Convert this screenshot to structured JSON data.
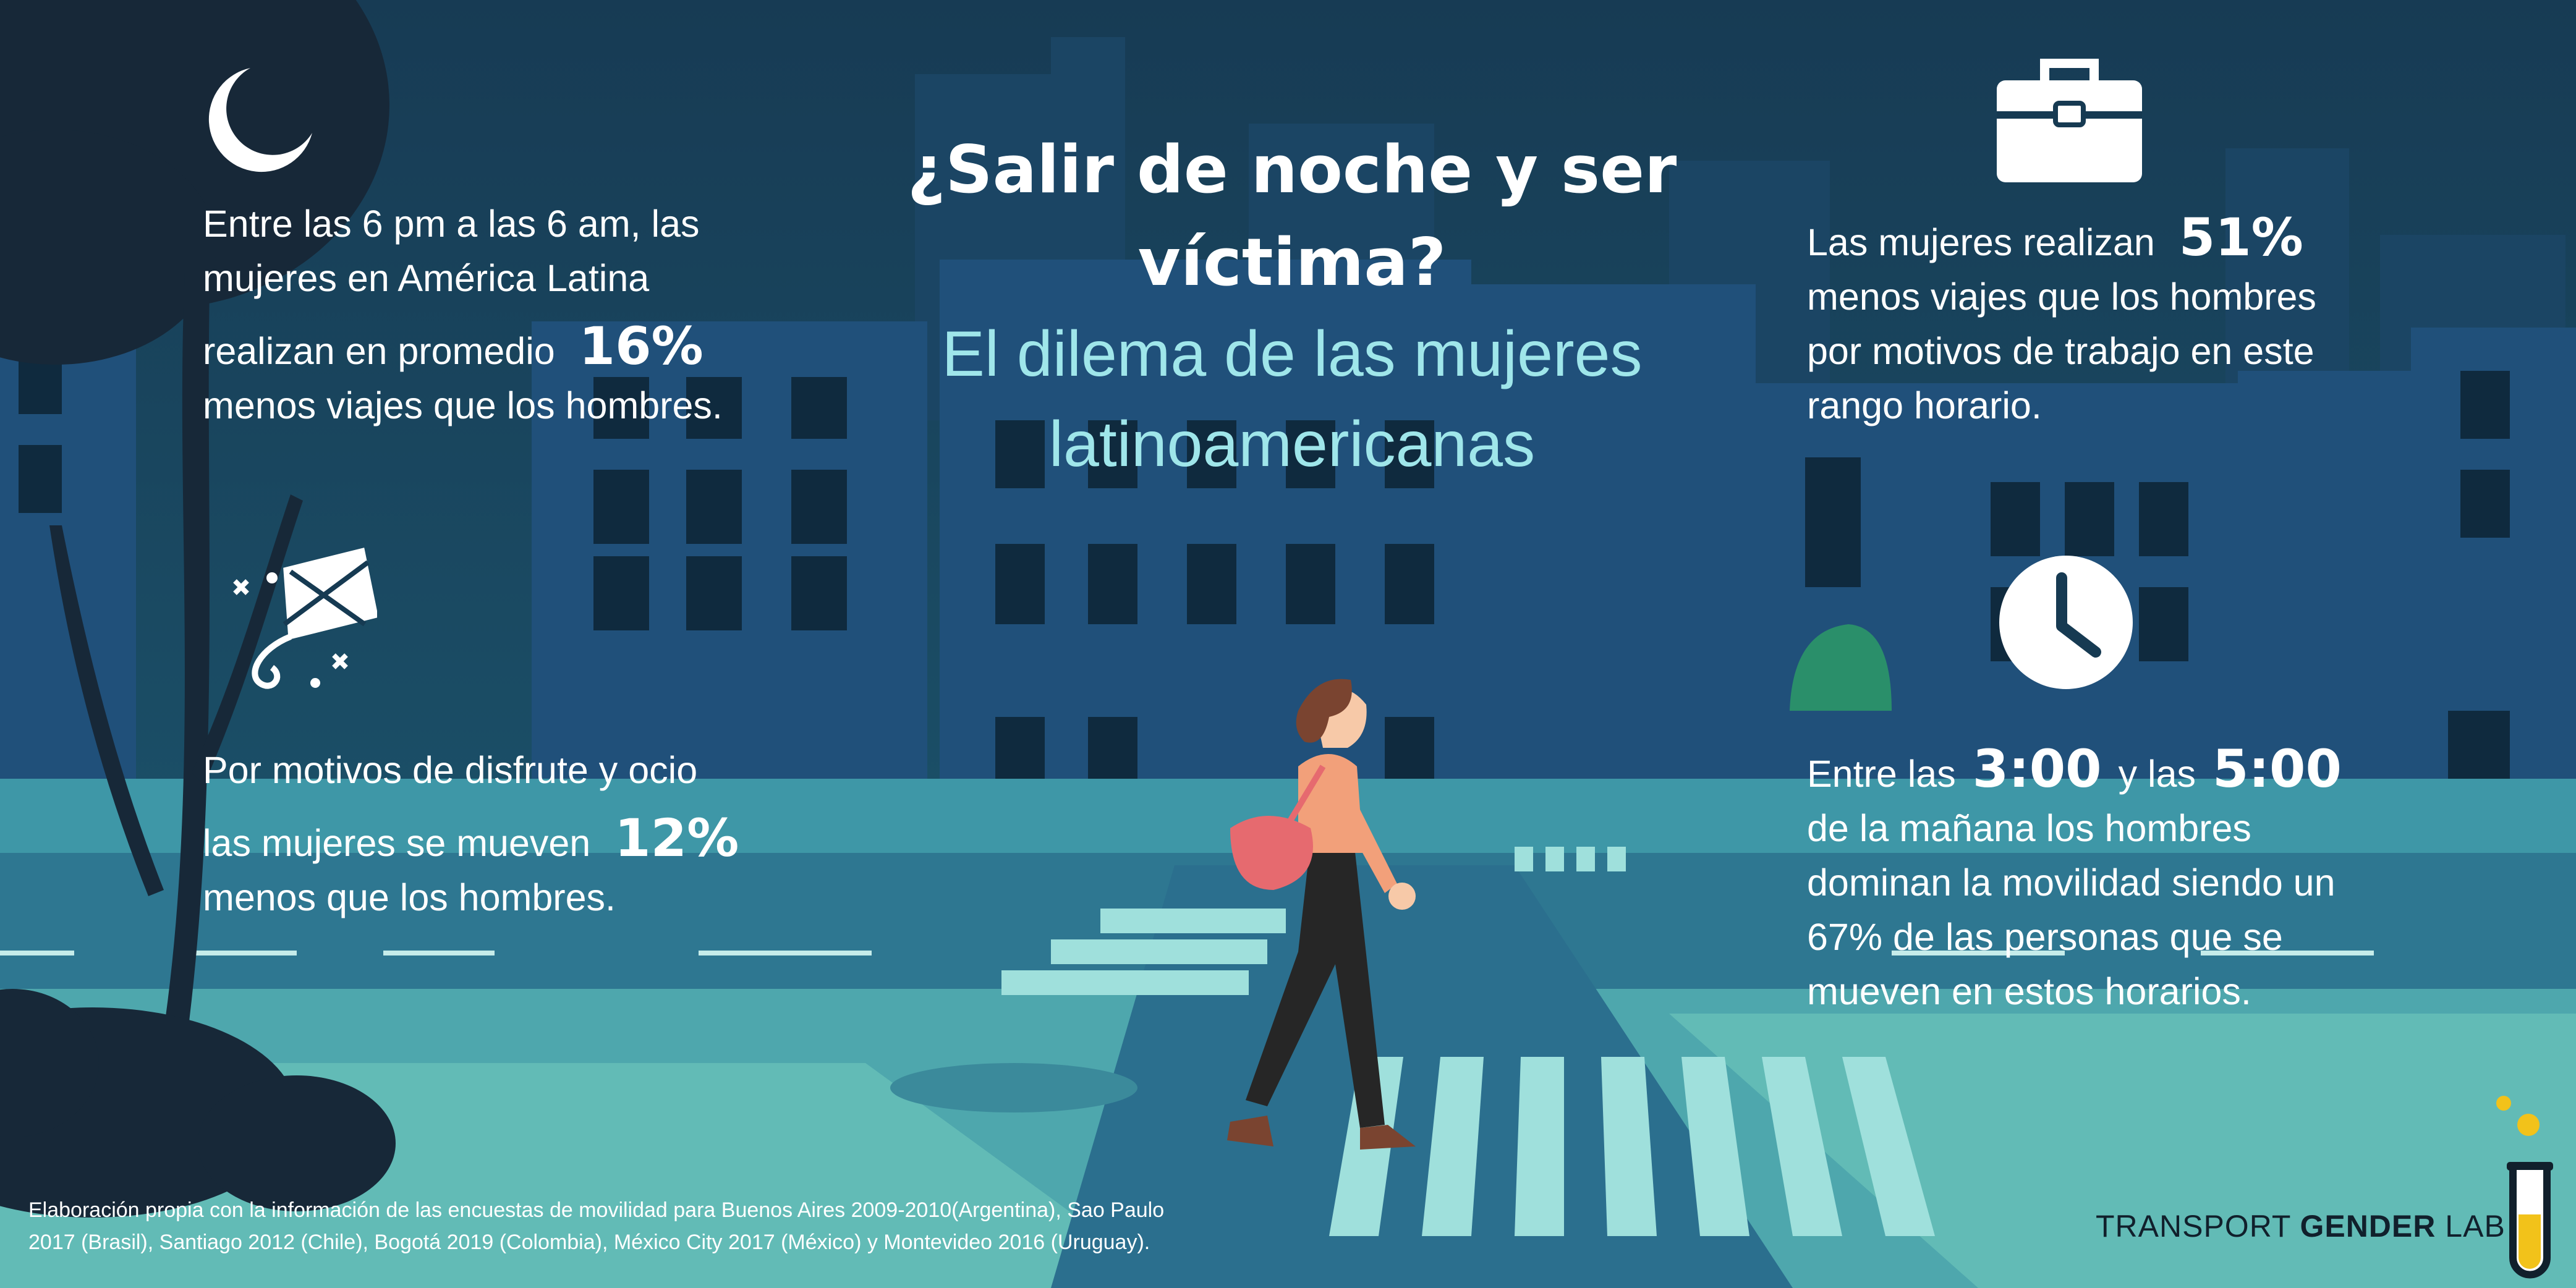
{
  "title": {
    "line1": "¿Salir de noche y ser",
    "line2": "víctima?",
    "sub1": "El dilema de las mujeres",
    "sub2": "latinoamericanas"
  },
  "stat_night": {
    "line1": "Entre las 6 pm a las 6 am, las",
    "line2": "mujeres en América Latina",
    "line3_pre": "realizan en promedio",
    "value": "16%",
    "line4": "menos viajes que los hombres."
  },
  "stat_leisure": {
    "line1": "Por motivos de disfrute y ocio",
    "line2_pre": "las mujeres se mueven",
    "value": "12%",
    "line3": "menos que los hombres."
  },
  "stat_work": {
    "line1_pre": "Las mujeres realizan",
    "value": "51%",
    "line2": "menos viajes que los hombres",
    "line3": "por motivos de trabajo en este",
    "line4": "rango horario."
  },
  "stat_hours": {
    "pre": "Entre las",
    "time1": "3:00",
    "mid": "y las",
    "time2": "5:00",
    "line2": "de la mañana los hombres",
    "line3": "dominan la movilidad siendo un",
    "line4": "67% de las personas que se",
    "line5": "mueven en estos horarios."
  },
  "source_note": {
    "line1": "Elaboración propia con la información de las encuestas de movilidad para Buenos Aires 2009-2010(Argentina), Sao Paulo",
    "line2": "2017 (Brasil), Santiago 2012 (Chile), Bogotá 2019 (Colombia), México City 2017 (México) y Montevideo 2016 (Uruguay)."
  },
  "brand": {
    "part1": "TRANSPORT",
    "part2": "GENDER",
    "part3": "LAB"
  },
  "icons": [
    "moon-icon",
    "kite-icon",
    "briefcase-icon",
    "clock-icon",
    "test-tube-icon"
  ],
  "colors": {
    "sky": "#163a52",
    "building_dark": "#1f4a6e",
    "building_mid": "#2a5f86",
    "street": "#56b2b3",
    "crosswalk": "#8ad6d3",
    "title_sub": "#9fe6ea",
    "tree": "#172838",
    "accent_yellow": "#f2c21a"
  }
}
